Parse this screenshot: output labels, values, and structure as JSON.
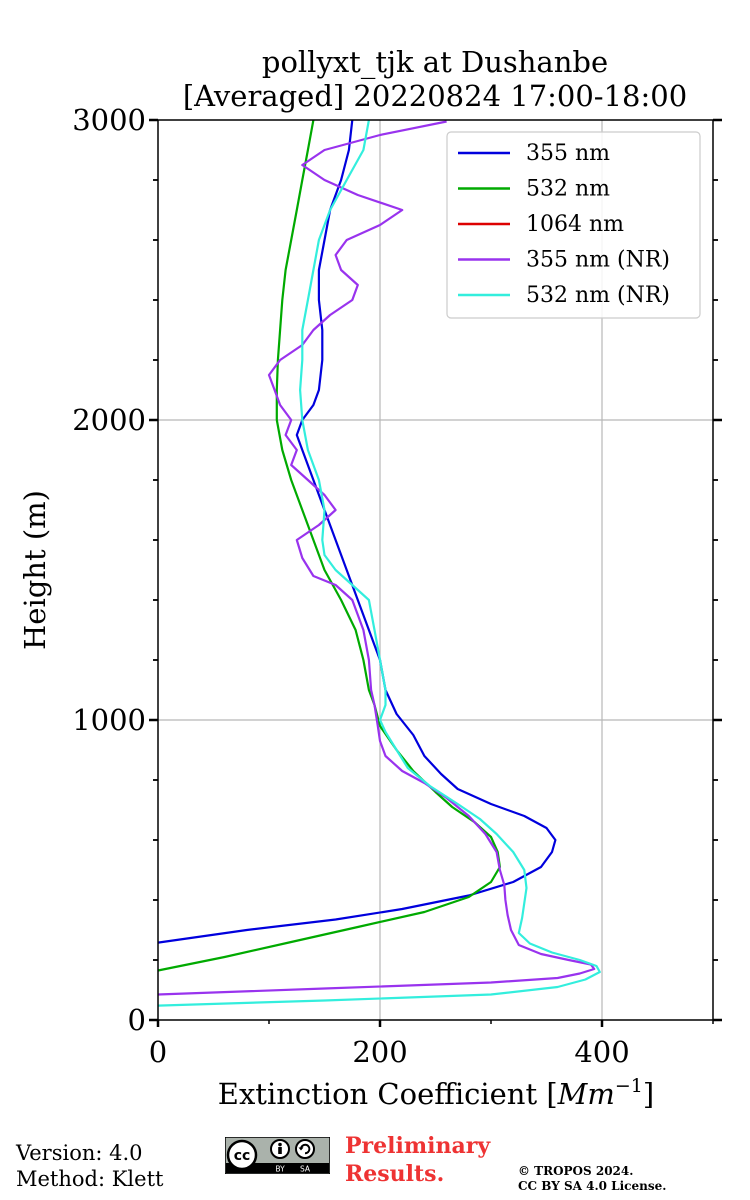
{
  "chart_data": {
    "type": "line",
    "title": [
      "pollyxt_tjk at Dushanbe",
      "[Averaged] 20220824 17:00-18:00"
    ],
    "xlabel": "Extinction Coefficient [Mm⁻¹]",
    "xlabel_main": "Extinction Coefficient [",
    "xlabel_unit": "Mm",
    "xlabel_exp": "−1",
    "xlabel_end": "]",
    "ylabel": "Height (m)",
    "xlim": [
      0,
      500
    ],
    "ylim": [
      0,
      3000
    ],
    "xticks": [
      0,
      200,
      400
    ],
    "yticks": [
      0,
      1000,
      2000,
      3000
    ],
    "grid": true,
    "legend_position": "top-right",
    "series": [
      {
        "name": "355 nm",
        "color": "#0000dd",
        "points": [
          [
            0,
            258
          ],
          [
            80,
            300
          ],
          [
            160,
            335
          ],
          [
            220,
            370
          ],
          [
            280,
            415
          ],
          [
            320,
            460
          ],
          [
            345,
            510
          ],
          [
            355,
            560
          ],
          [
            358,
            600
          ],
          [
            350,
            640
          ],
          [
            330,
            680
          ],
          [
            300,
            720
          ],
          [
            270,
            770
          ],
          [
            255,
            820
          ],
          [
            240,
            880
          ],
          [
            230,
            950
          ],
          [
            215,
            1020
          ],
          [
            205,
            1100
          ],
          [
            200,
            1200
          ],
          [
            190,
            1300
          ],
          [
            180,
            1400
          ],
          [
            170,
            1500
          ],
          [
            160,
            1600
          ],
          [
            150,
            1700
          ],
          [
            140,
            1800
          ],
          [
            130,
            1900
          ],
          [
            125,
            1950
          ],
          [
            130,
            2000
          ],
          [
            140,
            2050
          ],
          [
            145,
            2100
          ],
          [
            148,
            2200
          ],
          [
            148,
            2300
          ],
          [
            145,
            2400
          ],
          [
            145,
            2500
          ],
          [
            150,
            2600
          ],
          [
            155,
            2700
          ],
          [
            165,
            2800
          ],
          [
            172,
            2900
          ],
          [
            175,
            3000
          ]
        ]
      },
      {
        "name": "532 nm",
        "color": "#00aa00",
        "points": [
          [
            0,
            165
          ],
          [
            60,
            210
          ],
          [
            120,
            260
          ],
          [
            180,
            310
          ],
          [
            240,
            360
          ],
          [
            280,
            410
          ],
          [
            300,
            460
          ],
          [
            308,
            510
          ],
          [
            306,
            560
          ],
          [
            300,
            610
          ],
          [
            285,
            660
          ],
          [
            265,
            710
          ],
          [
            250,
            760
          ],
          [
            230,
            830
          ],
          [
            215,
            900
          ],
          [
            200,
            980
          ],
          [
            195,
            1050
          ],
          [
            190,
            1100
          ],
          [
            185,
            1200
          ],
          [
            178,
            1300
          ],
          [
            165,
            1400
          ],
          [
            150,
            1500
          ],
          [
            140,
            1600
          ],
          [
            130,
            1700
          ],
          [
            120,
            1800
          ],
          [
            112,
            1900
          ],
          [
            107,
            2000
          ],
          [
            107,
            2100
          ],
          [
            108,
            2200
          ],
          [
            110,
            2300
          ],
          [
            112,
            2400
          ],
          [
            115,
            2500
          ],
          [
            120,
            2600
          ],
          [
            125,
            2700
          ],
          [
            130,
            2800
          ],
          [
            135,
            2900
          ],
          [
            140,
            3000
          ]
        ]
      },
      {
        "name": "1064 nm",
        "color": "#dd0000",
        "points": []
      },
      {
        "name": "355 nm (NR)",
        "color": "#9933ee",
        "points": [
          [
            0,
            85
          ],
          [
            150,
            105
          ],
          [
            300,
            125
          ],
          [
            360,
            140
          ],
          [
            380,
            155
          ],
          [
            393,
            170
          ],
          [
            390,
            185
          ],
          [
            370,
            200
          ],
          [
            345,
            220
          ],
          [
            325,
            250
          ],
          [
            318,
            300
          ],
          [
            315,
            350
          ],
          [
            313,
            400
          ],
          [
            312,
            450
          ],
          [
            308,
            500
          ],
          [
            305,
            560
          ],
          [
            295,
            620
          ],
          [
            280,
            680
          ],
          [
            260,
            740
          ],
          [
            240,
            790
          ],
          [
            220,
            830
          ],
          [
            205,
            880
          ],
          [
            200,
            930
          ],
          [
            198,
            980
          ],
          [
            195,
            1050
          ],
          [
            192,
            1100
          ],
          [
            190,
            1200
          ],
          [
            185,
            1300
          ],
          [
            175,
            1400
          ],
          [
            160,
            1450
          ],
          [
            140,
            1480
          ],
          [
            130,
            1540
          ],
          [
            125,
            1600
          ],
          [
            145,
            1650
          ],
          [
            160,
            1700
          ],
          [
            150,
            1750
          ],
          [
            135,
            1800
          ],
          [
            120,
            1850
          ],
          [
            125,
            1900
          ],
          [
            115,
            1950
          ],
          [
            120,
            2000
          ],
          [
            110,
            2050
          ],
          [
            105,
            2100
          ],
          [
            100,
            2150
          ],
          [
            110,
            2200
          ],
          [
            130,
            2250
          ],
          [
            140,
            2300
          ],
          [
            155,
            2350
          ],
          [
            175,
            2400
          ],
          [
            180,
            2450
          ],
          [
            165,
            2500
          ],
          [
            160,
            2550
          ],
          [
            170,
            2600
          ],
          [
            200,
            2650
          ],
          [
            220,
            2700
          ],
          [
            180,
            2750
          ],
          [
            150,
            2800
          ],
          [
            130,
            2850
          ],
          [
            150,
            2900
          ],
          [
            200,
            2950
          ],
          [
            260,
            2995
          ]
        ]
      },
      {
        "name": "532 nm (NR)",
        "color": "#33eedd",
        "points": [
          [
            0,
            48
          ],
          [
            150,
            65
          ],
          [
            300,
            85
          ],
          [
            360,
            110
          ],
          [
            385,
            135
          ],
          [
            398,
            160
          ],
          [
            395,
            180
          ],
          [
            380,
            200
          ],
          [
            355,
            225
          ],
          [
            335,
            255
          ],
          [
            325,
            290
          ],
          [
            328,
            340
          ],
          [
            330,
            390
          ],
          [
            332,
            440
          ],
          [
            330,
            500
          ],
          [
            320,
            560
          ],
          [
            305,
            620
          ],
          [
            290,
            670
          ],
          [
            270,
            720
          ],
          [
            245,
            780
          ],
          [
            225,
            840
          ],
          [
            215,
            900
          ],
          [
            205,
            960
          ],
          [
            200,
            1000
          ],
          [
            205,
            1050
          ],
          [
            205,
            1100
          ],
          [
            200,
            1200
          ],
          [
            195,
            1300
          ],
          [
            190,
            1400
          ],
          [
            175,
            1450
          ],
          [
            160,
            1500
          ],
          [
            150,
            1550
          ],
          [
            148,
            1600
          ],
          [
            150,
            1700
          ],
          [
            145,
            1800
          ],
          [
            135,
            1900
          ],
          [
            130,
            2000
          ],
          [
            128,
            2100
          ],
          [
            130,
            2200
          ],
          [
            130,
            2300
          ],
          [
            135,
            2400
          ],
          [
            140,
            2500
          ],
          [
            145,
            2600
          ],
          [
            155,
            2700
          ],
          [
            170,
            2800
          ],
          [
            185,
            2900
          ],
          [
            190,
            3000
          ]
        ]
      }
    ]
  },
  "footer": {
    "version": "Version: 4.0",
    "method": "Method: Klett",
    "preliminary_1": "Preliminary",
    "preliminary_2": "Results.",
    "copyright_1": "© TROPOS 2024.",
    "copyright_2": "CC BY SA 4.0 License."
  },
  "license_badge": {
    "cc": "cc",
    "by": "BY",
    "sa": "SA"
  }
}
